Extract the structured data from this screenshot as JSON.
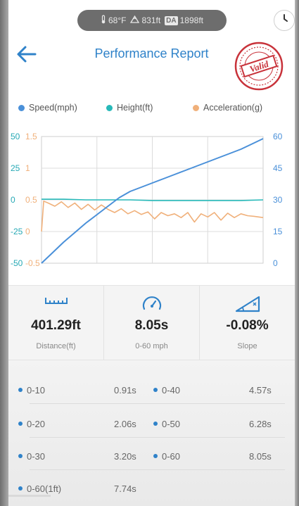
{
  "status": {
    "temperature": "68°F",
    "altitude": "831ft",
    "da_label": "DA",
    "density_altitude": "1898ft"
  },
  "header": {
    "title": "Performance Report",
    "stamp_text": "Valid"
  },
  "legend": [
    {
      "label": "Speed(mph)",
      "color": "#4a90d9"
    },
    {
      "label": "Height(ft)",
      "color": "#27b9b9"
    },
    {
      "label": "Acceleration(g)",
      "color": "#f0b07a"
    }
  ],
  "chart_data": {
    "type": "line",
    "title": "",
    "xlabel": "",
    "grid": true,
    "axes": {
      "height_ticks": [
        "50",
        "25",
        "0",
        "-25",
        "-50"
      ],
      "height_range": [
        -50,
        50
      ],
      "acceleration_ticks": [
        "1.5",
        "1",
        "0.5",
        "0",
        "-0.5"
      ],
      "acceleration_range": [
        -0.5,
        1.5
      ],
      "speed_ticks": [
        "60",
        "45",
        "30",
        "15",
        "0"
      ],
      "speed_range": [
        0,
        60
      ]
    },
    "series": [
      {
        "name": "Speed(mph)",
        "axis": "speed",
        "color": "#4a90d9",
        "x": [
          0,
          5,
          10,
          15,
          20,
          25,
          30,
          35,
          40,
          45,
          50,
          55,
          60,
          65,
          70,
          75,
          80,
          85,
          90,
          95,
          100
        ],
        "values": [
          0,
          5,
          10,
          14.5,
          19,
          23,
          27,
          31,
          34,
          36,
          38,
          40,
          42,
          44,
          46,
          48,
          50,
          52,
          54,
          56.5,
          59
        ]
      },
      {
        "name": "Height(ft)",
        "axis": "height",
        "color": "#27b9b9",
        "x": [
          0,
          10,
          20,
          30,
          40,
          50,
          60,
          70,
          80,
          90,
          100
        ],
        "values": [
          0.5,
          0.5,
          0,
          0,
          0,
          -0.5,
          -0.5,
          -0.5,
          -0.5,
          -0.5,
          0
        ]
      },
      {
        "name": "Acceleration(g)",
        "axis": "acceleration",
        "color": "#f0b07a",
        "x": [
          0,
          1,
          3,
          6,
          9,
          12,
          15,
          18,
          21,
          24,
          27,
          30,
          33,
          36,
          39,
          42,
          45,
          48,
          51,
          54,
          57,
          60,
          63,
          66,
          69,
          72,
          75,
          78,
          81,
          84,
          87,
          90,
          93,
          96,
          100
        ],
        "values": [
          0.0,
          0.48,
          0.45,
          0.4,
          0.47,
          0.38,
          0.45,
          0.35,
          0.43,
          0.34,
          0.42,
          0.35,
          0.3,
          0.36,
          0.28,
          0.33,
          0.27,
          0.31,
          0.2,
          0.3,
          0.25,
          0.28,
          0.22,
          0.3,
          0.15,
          0.28,
          0.23,
          0.3,
          0.18,
          0.29,
          0.22,
          0.28,
          0.25,
          0.24,
          0.22
        ]
      }
    ]
  },
  "stats": [
    {
      "icon": "ruler-icon",
      "value": "401.29ft",
      "label": "Distance(ft)"
    },
    {
      "icon": "speedometer-icon",
      "value": "8.05s",
      "label": "0-60 mph"
    },
    {
      "icon": "slope-icon",
      "value": "-0.08%",
      "label": "Slope"
    }
  ],
  "splits": [
    [
      {
        "label": "0-10",
        "time": "0.91s"
      },
      {
        "label": "0-40",
        "time": "4.57s"
      }
    ],
    [
      {
        "label": "0-20",
        "time": "2.06s"
      },
      {
        "label": "0-50",
        "time": "6.28s"
      }
    ],
    [
      {
        "label": "0-30",
        "time": "3.20s"
      },
      {
        "label": "0-60",
        "time": "8.05s"
      }
    ],
    [
      {
        "label": "0-60(1ft)",
        "time": "7.74s"
      }
    ]
  ]
}
